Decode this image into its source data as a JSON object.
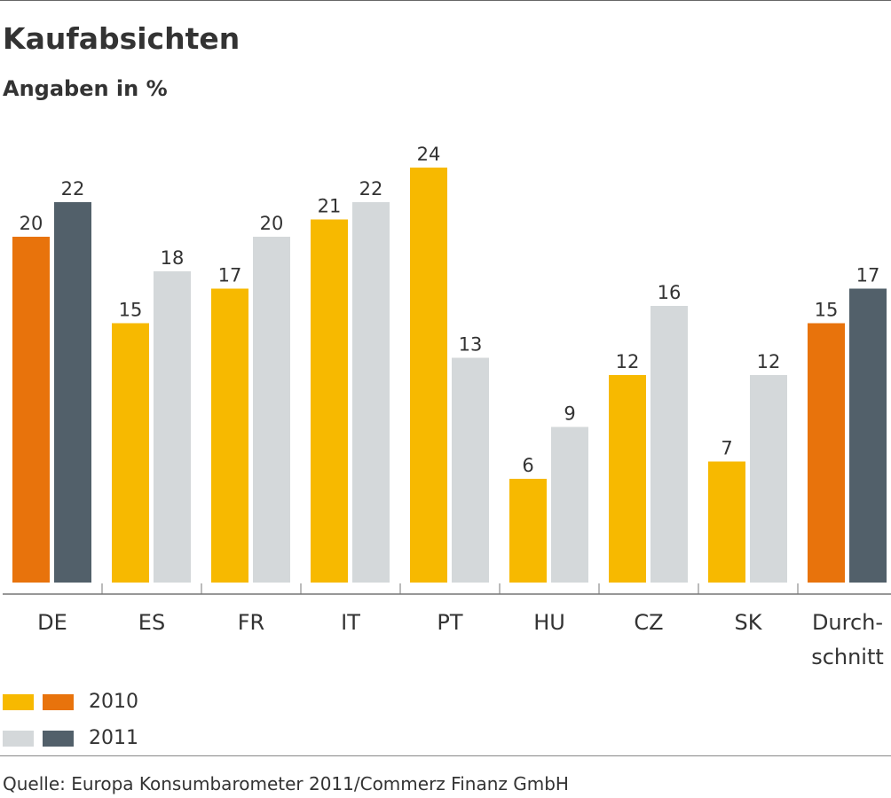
{
  "chart_data": {
    "type": "bar",
    "title": "Kaufabsichten",
    "subtitle": "Angaben in %",
    "categories": [
      "DE",
      "ES",
      "FR",
      "IT",
      "PT",
      "HU",
      "CZ",
      "SK",
      "Durch-\nschnitt"
    ],
    "series": [
      {
        "name": "2010",
        "values": [
          20,
          15,
          17,
          21,
          24,
          6,
          12,
          7,
          15
        ]
      },
      {
        "name": "2011",
        "values": [
          22,
          18,
          20,
          22,
          13,
          9,
          16,
          12,
          17
        ]
      }
    ],
    "highlight_categories": [
      "DE",
      "Durch-\nschnitt"
    ],
    "colors": {
      "2010": "#F7B900",
      "2011": "#D4D8DA",
      "2010_highlight": "#E8730C",
      "2011_highlight": "#52606A"
    },
    "ylim": [
      0,
      25
    ],
    "grid": false,
    "legend": "bottom-left",
    "source": "Quelle: Europa Konsumbarometer 2011/Commerz Finanz GmbH"
  }
}
